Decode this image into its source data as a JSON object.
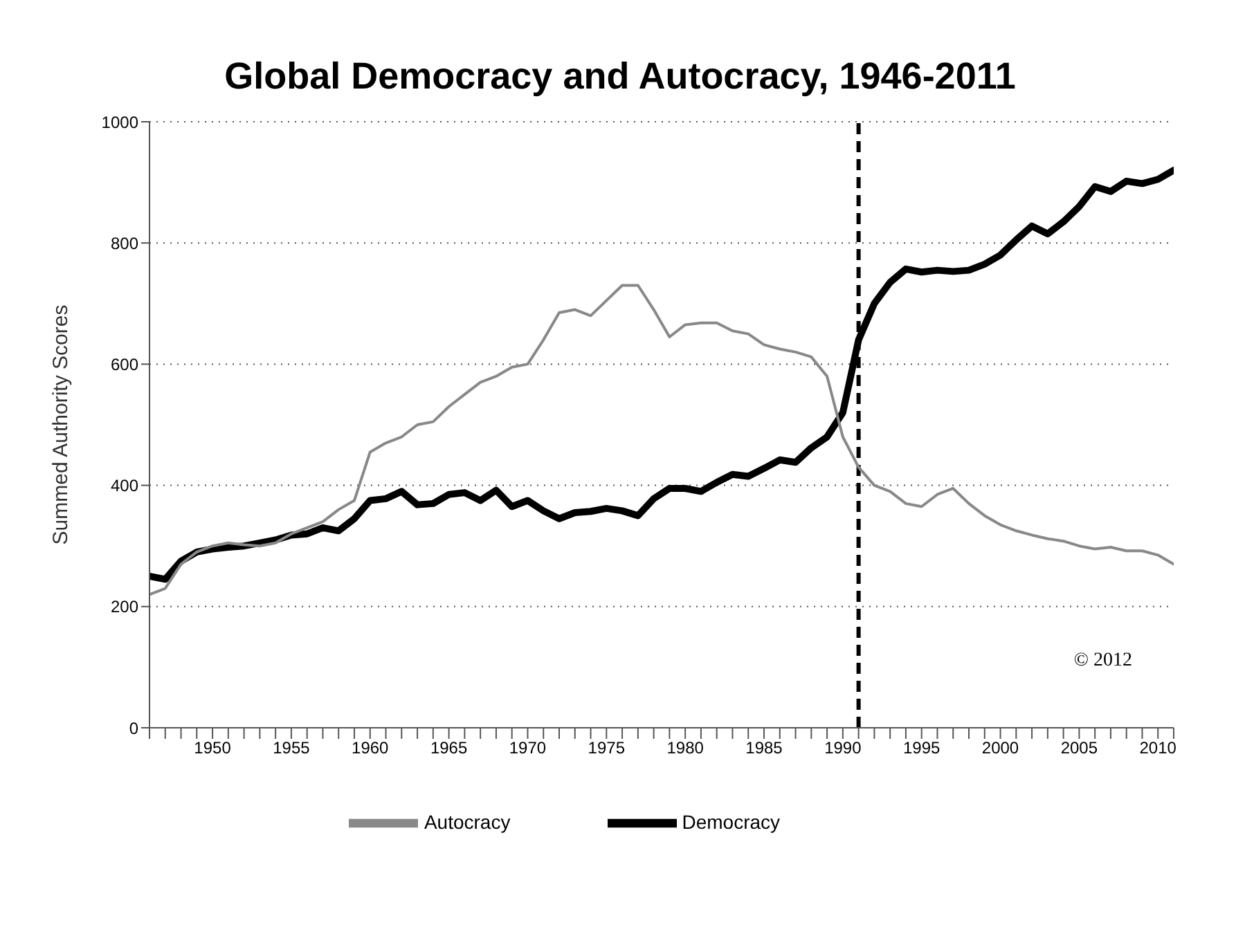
{
  "chart_data": {
    "type": "line",
    "title": "Global Democracy and Autocracy, 1946-2011",
    "ylabel": "Summed Authority Scores",
    "x": [
      1946,
      1947,
      1948,
      1949,
      1950,
      1951,
      1952,
      1953,
      1954,
      1955,
      1956,
      1957,
      1958,
      1959,
      1960,
      1961,
      1962,
      1963,
      1964,
      1965,
      1966,
      1967,
      1968,
      1969,
      1970,
      1971,
      1972,
      1973,
      1974,
      1975,
      1976,
      1977,
      1978,
      1979,
      1980,
      1981,
      1982,
      1983,
      1984,
      1985,
      1986,
      1987,
      1988,
      1989,
      1990,
      1991,
      1992,
      1993,
      1994,
      1995,
      1996,
      1997,
      1998,
      1999,
      2000,
      2001,
      2002,
      2003,
      2004,
      2005,
      2006,
      2007,
      2008,
      2009,
      2010,
      2011
    ],
    "series": [
      {
        "name": "Democracy",
        "color": "#000000",
        "line_style": "solid",
        "values": [
          250,
          245,
          275,
          290,
          295,
          298,
          300,
          305,
          310,
          318,
          320,
          330,
          325,
          345,
          375,
          378,
          390,
          368,
          370,
          385,
          388,
          375,
          392,
          365,
          375,
          358,
          345,
          355,
          357,
          362,
          358,
          350,
          378,
          395,
          395,
          390,
          405,
          418,
          415,
          428,
          442,
          438,
          462,
          480,
          520,
          640,
          700,
          735,
          757,
          752,
          755,
          753,
          755,
          765,
          780,
          805,
          828,
          815,
          835,
          860,
          893,
          885,
          902,
          898,
          905,
          920
        ]
      },
      {
        "name": "Autocracy",
        "color": "#888888",
        "line_style": "solid",
        "values": [
          220,
          230,
          270,
          290,
          300,
          305,
          302,
          300,
          305,
          320,
          330,
          340,
          360,
          375,
          455,
          470,
          480,
          500,
          505,
          530,
          550,
          570,
          580,
          595,
          600,
          640,
          685,
          690,
          680,
          705,
          730,
          730,
          690,
          645,
          665,
          668,
          668,
          655,
          650,
          632,
          625,
          620,
          612,
          580,
          480,
          430,
          400,
          390,
          370,
          365,
          385,
          395,
          370,
          350,
          335,
          325,
          318,
          312,
          308,
          300,
          295,
          298,
          292,
          292,
          285,
          270
        ]
      }
    ],
    "xlim": [
      1946,
      2011
    ],
    "xticks": [
      {
        "value": 1946,
        "label": null
      },
      {
        "value": 1947,
        "label": null
      },
      {
        "value": 1948,
        "label": null
      },
      {
        "value": 1949,
        "label": null
      },
      1950,
      {
        "value": 1951,
        "label": null
      },
      {
        "value": 1952,
        "label": null
      },
      {
        "value": 1953,
        "label": null
      },
      {
        "value": 1954,
        "label": null
      },
      1955,
      {
        "value": 1956,
        "label": null
      },
      {
        "value": 1957,
        "label": null
      },
      {
        "value": 1958,
        "label": null
      },
      {
        "value": 1959,
        "label": null
      },
      1960,
      {
        "value": 1961,
        "label": null
      },
      {
        "value": 1962,
        "label": null
      },
      {
        "value": 1963,
        "label": null
      },
      {
        "value": 1964,
        "label": null
      },
      1965,
      {
        "value": 1966,
        "label": null
      },
      {
        "value": 1967,
        "label": null
      },
      {
        "value": 1968,
        "label": null
      },
      {
        "value": 1969,
        "label": null
      },
      1970,
      {
        "value": 1971,
        "label": null
      },
      {
        "value": 1972,
        "label": null
      },
      {
        "value": 1973,
        "label": null
      },
      {
        "value": 1974,
        "label": null
      },
      1975,
      {
        "value": 1976,
        "label": null
      },
      {
        "value": 1977,
        "label": null
      },
      {
        "value": 1978,
        "label": null
      },
      {
        "value": 1979,
        "label": null
      },
      1980,
      {
        "value": 1981,
        "label": null
      },
      {
        "value": 1982,
        "label": null
      },
      {
        "value": 1983,
        "label": null
      },
      {
        "value": 1984,
        "label": null
      },
      1985,
      {
        "value": 1986,
        "label": null
      },
      {
        "value": 1987,
        "label": null
      },
      {
        "value": 1988,
        "label": null
      },
      {
        "value": 1989,
        "label": null
      },
      1990,
      {
        "value": 1991,
        "label": null
      },
      {
        "value": 1992,
        "label": null
      },
      {
        "value": 1993,
        "label": null
      },
      {
        "value": 1994,
        "label": null
      },
      1995,
      {
        "value": 1996,
        "label": null
      },
      {
        "value": 1997,
        "label": null
      },
      {
        "value": 1998,
        "label": null
      },
      {
        "value": 1999,
        "label": null
      },
      2000,
      {
        "value": 2001,
        "label": null
      },
      {
        "value": 2002,
        "label": null
      },
      {
        "value": 2003,
        "label": null
      },
      {
        "value": 2004,
        "label": null
      },
      2005,
      {
        "value": 2006,
        "label": null
      },
      {
        "value": 2007,
        "label": null
      },
      {
        "value": 2008,
        "label": null
      },
      {
        "value": 2009,
        "label": null
      },
      2010,
      {
        "value": 2011,
        "label": null
      }
    ],
    "ylim": [
      0,
      1000
    ],
    "yticks": [
      0,
      200,
      400,
      600,
      800,
      1000
    ],
    "grid": "y",
    "legend": "bottom",
    "marker": "none",
    "ref_lines": [
      {
        "axis": "x",
        "value": 1991,
        "color": "#000000",
        "line_style": "dashed"
      }
    ],
    "annotations": [
      "© 2012"
    ]
  }
}
